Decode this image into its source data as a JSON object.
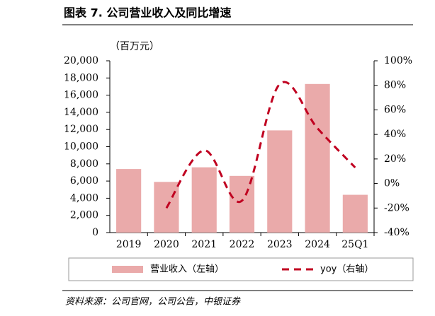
{
  "chart_data": {
    "type": "bar",
    "title": "图表 7. 公司营业收入及同比增速",
    "y_label": "（百万元）",
    "source": "资料来源：公司官网，公司公告，中银证券",
    "categories": [
      "2019",
      "2020",
      "2021",
      "2022",
      "2023",
      "2024",
      "25Q1"
    ],
    "series": [
      {
        "name": "营业收入（左轴）",
        "type": "bar",
        "color": "#eaaaaa",
        "values": [
          7400,
          5900,
          7600,
          6600,
          11900,
          17300,
          4400
        ]
      },
      {
        "name": "yoy（右轴）",
        "type": "line",
        "axis": "y2",
        "color": "#c00020",
        "values": [
          null,
          -20,
          27,
          -14,
          81,
          45,
          13
        ]
      }
    ],
    "ylim": [
      0,
      20000
    ],
    "yticks": [
      0,
      {
        "value": 2000,
        "label": "2,000"
      },
      {
        "value": 4000,
        "label": "4,000"
      },
      {
        "value": 6000,
        "label": "6,000"
      },
      {
        "value": 8000,
        "label": "8,000"
      },
      {
        "value": 10000,
        "label": "10,000"
      },
      {
        "value": 12000,
        "label": "12,000"
      },
      {
        "value": 14000,
        "label": "14,000"
      },
      {
        "value": 16000,
        "label": "16,000"
      },
      {
        "value": 18000,
        "label": "18,000"
      },
      {
        "value": 20000,
        "label": "20,000"
      }
    ],
    "y2lim": [
      -40,
      100
    ],
    "y2ticks": [
      {
        "value": -40,
        "label": "-40%"
      },
      {
        "value": -20,
        "label": "-20%"
      },
      {
        "value": 0,
        "label": "0%"
      },
      {
        "value": 20,
        "label": "20%"
      },
      {
        "value": 40,
        "label": "40%"
      },
      {
        "value": 60,
        "label": "60%"
      },
      {
        "value": 80,
        "label": "80%"
      },
      {
        "value": 100,
        "label": "100%"
      }
    ]
  }
}
